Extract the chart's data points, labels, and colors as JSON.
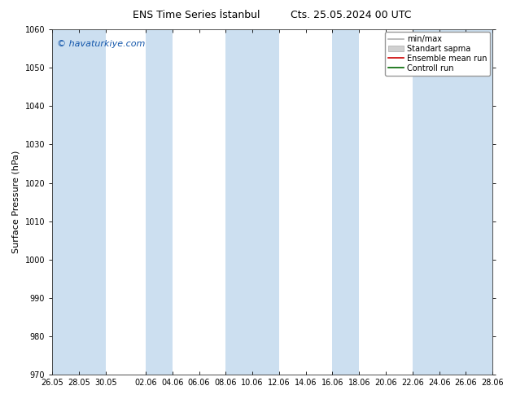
{
  "title_left": "ENS Time Series İstanbul",
  "title_right": "Cts. 25.05.2024 00 UTC",
  "ylabel": "Surface Pressure (hPa)",
  "watermark": "© havaturkiye.com",
  "ylim": [
    970,
    1060
  ],
  "yticks": [
    970,
    980,
    990,
    1000,
    1010,
    1020,
    1030,
    1040,
    1050,
    1060
  ],
  "xtick_labels": [
    "26.05",
    "28.05",
    "30.05",
    "02.06",
    "04.06",
    "06.06",
    "08.06",
    "10.06",
    "12.06",
    "14.06",
    "16.06",
    "18.06",
    "20.06",
    "22.06",
    "24.06",
    "26.06",
    "28.06"
  ],
  "band_color": "#ccdff0",
  "background_color": "#ffffff",
  "legend_items": [
    {
      "label": "min/max",
      "color": "#b0b0b0",
      "lw": 1.2,
      "style": "-",
      "type": "line"
    },
    {
      "label": "Standart sapma",
      "color": "#d0d0d0",
      "lw": 8,
      "style": "-",
      "type": "patch"
    },
    {
      "label": "Ensemble mean run",
      "color": "#cc0000",
      "lw": 1.2,
      "style": "-",
      "type": "line"
    },
    {
      "label": "Controll run",
      "color": "#006600",
      "lw": 1.2,
      "style": "-",
      "type": "line"
    }
  ],
  "title_fontsize": 9,
  "tick_fontsize": 7,
  "label_fontsize": 8,
  "watermark_fontsize": 8,
  "legend_fontsize": 7
}
